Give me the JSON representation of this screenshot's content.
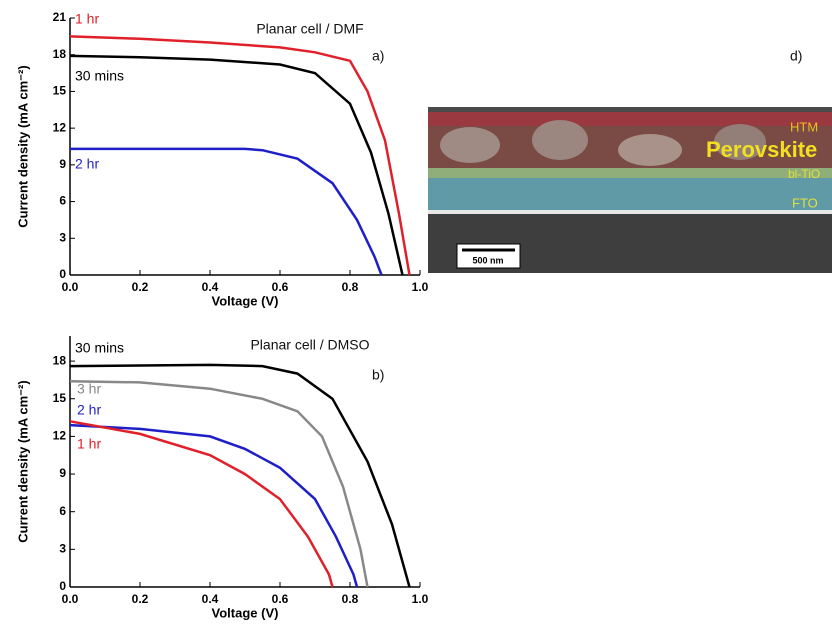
{
  "chart_data": [
    {
      "type": "line",
      "title": "Planar cell / DMF",
      "panel_label": "a)",
      "x_label": "Voltage (V)",
      "y_label": "Current density (mA cm⁻²)",
      "xlim": [
        0,
        1
      ],
      "ylim": [
        0,
        21
      ],
      "xticks": [
        {
          "value": 0,
          "label": "0.0"
        },
        0.2,
        0.4,
        0.6,
        0.8,
        {
          "value": 1,
          "label": "1.0"
        }
      ],
      "yticks": [
        0,
        3,
        6,
        9,
        12,
        15,
        18,
        21
      ],
      "series": [
        {
          "name": "1 hr",
          "color": "#e0202a",
          "x": [
            0,
            0.2,
            0.4,
            0.6,
            0.7,
            0.8,
            0.85,
            0.9,
            0.94,
            0.97
          ],
          "values": [
            19.5,
            19.3,
            19.0,
            18.6,
            18.2,
            17.5,
            15,
            11,
            5,
            0
          ]
        },
        {
          "name": "30 mins",
          "color": "#000000",
          "x": [
            0,
            0.2,
            0.4,
            0.6,
            0.7,
            0.8,
            0.86,
            0.91,
            0.95
          ],
          "values": [
            17.9,
            17.8,
            17.6,
            17.2,
            16.5,
            14,
            10,
            5,
            0
          ]
        },
        {
          "name": "2 hr",
          "color": "#1f1fc8",
          "x": [
            0,
            0.2,
            0.5,
            0.55,
            0.65,
            0.75,
            0.82,
            0.87,
            0.89
          ],
          "values": [
            10.3,
            10.3,
            10.3,
            10.2,
            9.5,
            7.5,
            4.5,
            1.5,
            0
          ]
        }
      ]
    },
    {
      "type": "line",
      "title": "Planar cell / DMSO",
      "panel_label": "b)",
      "x_label": "Voltage (V)",
      "y_label": "Current density (mA cm⁻²)",
      "xlim": [
        0,
        1
      ],
      "ylim": [
        0,
        20
      ],
      "xticks": [
        {
          "value": 0,
          "label": "0.0"
        },
        0.2,
        0.4,
        0.6,
        0.8,
        {
          "value": 1,
          "label": "1.0"
        }
      ],
      "yticks": [
        0,
        3,
        6,
        9,
        12,
        15,
        18
      ],
      "series": [
        {
          "name": "30 mins",
          "color": "#000000",
          "x": [
            0,
            0.4,
            0.55,
            0.65,
            0.75,
            0.85,
            0.92,
            0.97
          ],
          "values": [
            17.6,
            17.7,
            17.6,
            17,
            15,
            10,
            5,
            0
          ]
        },
        {
          "name": "3 hr",
          "color": "#888888",
          "x": [
            0,
            0.2,
            0.4,
            0.55,
            0.65,
            0.72,
            0.78,
            0.83,
            0.85
          ],
          "values": [
            16.4,
            16.3,
            15.8,
            15,
            14,
            12,
            8,
            3,
            0
          ]
        },
        {
          "name": "2 hr",
          "color": "#1f1fc8",
          "x": [
            0,
            0.2,
            0.4,
            0.5,
            0.6,
            0.7,
            0.76,
            0.81,
            0.82
          ],
          "values": [
            12.9,
            12.6,
            12,
            11,
            9.5,
            7,
            4,
            1,
            0
          ]
        },
        {
          "name": "1 hr",
          "color": "#e0202a",
          "x": [
            0,
            0.2,
            0.4,
            0.5,
            0.6,
            0.68,
            0.74,
            0.75
          ],
          "values": [
            13.2,
            12.2,
            10.5,
            9,
            7,
            4,
            1,
            0
          ]
        }
      ]
    }
  ],
  "image_panel": {
    "panel_label": "d)",
    "labels": [
      "HTM",
      "Perovskite",
      "bl-TiO",
      "FTO"
    ],
    "scale_bar": "500 nm"
  }
}
